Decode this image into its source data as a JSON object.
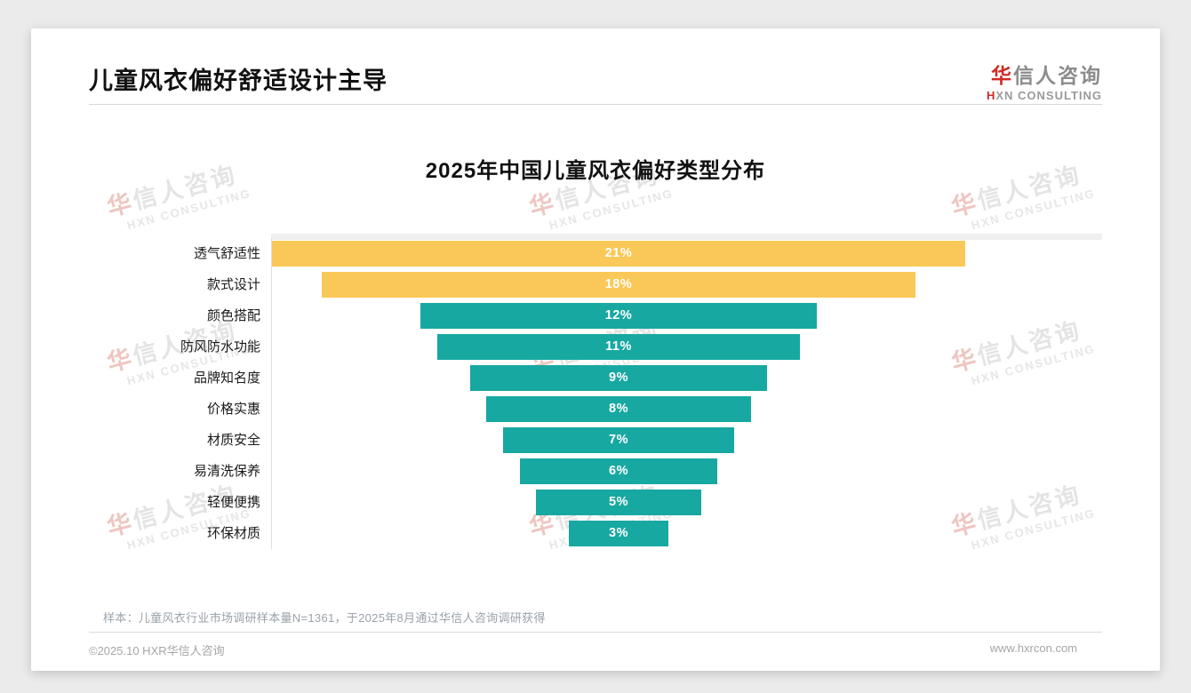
{
  "header": {
    "title": "儿童风衣偏好舒适设计主导"
  },
  "logo": {
    "cn_first": "华",
    "cn_rest": "信人咨询",
    "en_first": "H",
    "en_rest": "XN CONSULTING",
    "accent_color": "#ce2b23",
    "gray_color": "#8c8c8c"
  },
  "watermark": {
    "line1_first": "华",
    "line1_rest": "信人咨询",
    "line2": "HXN CONSULTING"
  },
  "chart_data": {
    "type": "bar",
    "variant": "horizontal-centered-funnel",
    "title": "2025年中国儿童风衣偏好类型分布",
    "categories": [
      "透气舒适性",
      "款式设计",
      "颜色搭配",
      "防风防水功能",
      "品牌知名度",
      "价格实惠",
      "材质安全",
      "易清洗保养",
      "轻便便携",
      "环保材质"
    ],
    "values": [
      21,
      18,
      12,
      11,
      9,
      8,
      7,
      6,
      5,
      3
    ],
    "value_labels": [
      "21%",
      "18%",
      "12%",
      "11%",
      "9%",
      "8%",
      "7%",
      "6%",
      "5%",
      "3%"
    ],
    "unit": "%",
    "bar_colors": [
      "#fac858",
      "#fac858",
      "#17a8a1",
      "#17a8a1",
      "#17a8a1",
      "#17a8a1",
      "#17a8a1",
      "#17a8a1",
      "#17a8a1",
      "#17a8a1"
    ],
    "highlight_color": "#fac858",
    "default_color": "#17a8a1",
    "label_text_color": "#ffffff",
    "legend": "none",
    "grid": "off",
    "xlim": [
      0,
      21
    ]
  },
  "footer": {
    "note": "样本：儿童风衣行业市场调研样本量N=1361，于2025年8月通过华信人咨询调研获得",
    "copyright": "©2025.10 HXR华信人咨询",
    "website": "www.hxrcon.com"
  }
}
